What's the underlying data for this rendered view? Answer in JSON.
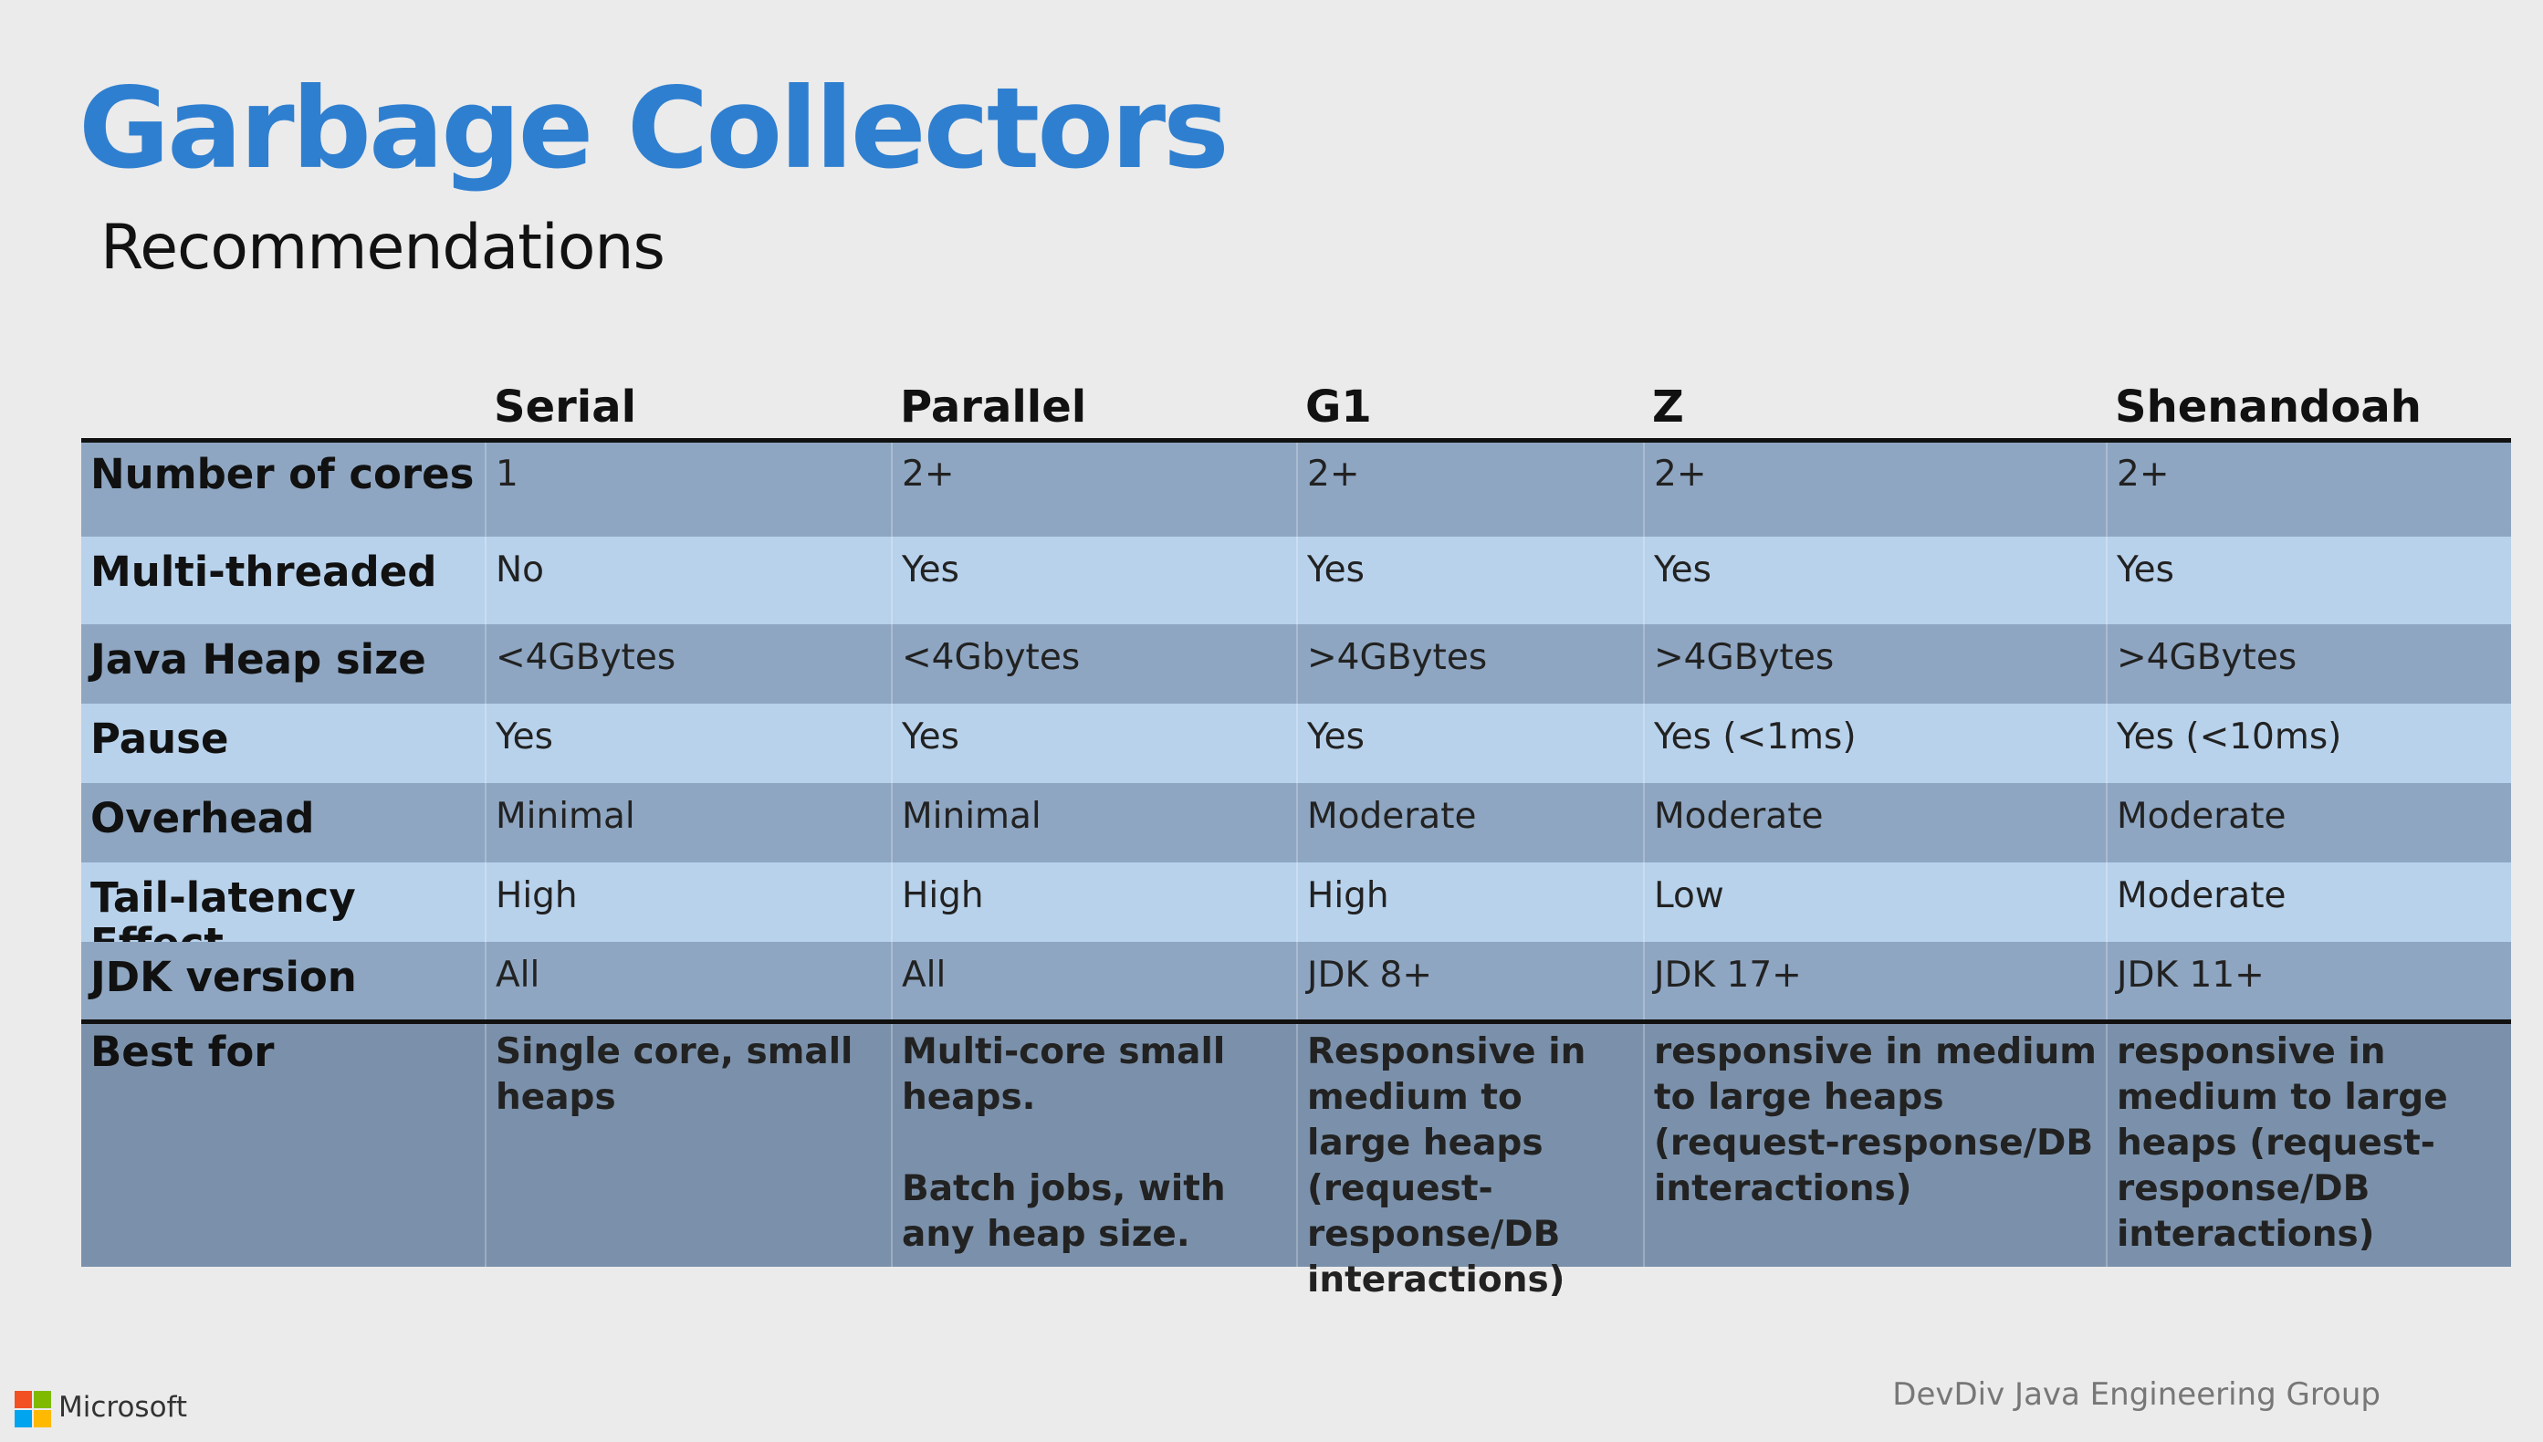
{
  "header": {
    "title": "Garbage Collectors",
    "subtitle": "Recommendations"
  },
  "table": {
    "columns": [
      "Serial",
      "Parallel",
      "G1",
      "Z",
      "Shenandoah"
    ],
    "rows": [
      {
        "label": "Number of cores",
        "cells": [
          [
            "1"
          ],
          [
            "2+"
          ],
          [
            "2+"
          ],
          [
            "2+"
          ],
          [
            "2+"
          ]
        ]
      },
      {
        "label": "Multi-threaded",
        "cells": [
          [
            "No"
          ],
          [
            "Yes"
          ],
          [
            "Yes"
          ],
          [
            "Yes"
          ],
          [
            "Yes"
          ]
        ]
      },
      {
        "label": "Java Heap size",
        "cells": [
          [
            "<4GBytes"
          ],
          [
            "<4Gbytes"
          ],
          [
            ">4GBytes"
          ],
          [
            ">4GBytes"
          ],
          [
            ">4GBytes"
          ]
        ]
      },
      {
        "label": "Pause",
        "cells": [
          [
            "Yes"
          ],
          [
            "Yes"
          ],
          [
            "Yes"
          ],
          [
            "Yes (<1ms)"
          ],
          [
            "Yes (<10ms)"
          ]
        ]
      },
      {
        "label": "Overhead",
        "cells": [
          [
            "Minimal"
          ],
          [
            "Minimal"
          ],
          [
            "Moderate"
          ],
          [
            "Moderate"
          ],
          [
            "Moderate"
          ]
        ]
      },
      {
        "label": "Tail-latency Effect",
        "cells": [
          [
            "High"
          ],
          [
            "High"
          ],
          [
            "High"
          ],
          [
            "Low"
          ],
          [
            "Moderate"
          ]
        ]
      },
      {
        "label": "JDK version",
        "cells": [
          [
            "All"
          ],
          [
            "All"
          ],
          [
            "JDK 8+"
          ],
          [
            "JDK 17+"
          ],
          [
            "JDK 11+"
          ]
        ]
      },
      {
        "label": "Best for",
        "cells": [
          [
            "Single core, small heaps"
          ],
          [
            "Multi-core small heaps.",
            "Batch jobs, with any heap size."
          ],
          [
            "Responsive in medium to large heaps (request-response/DB interactions)"
          ],
          [
            "responsive in medium to large heaps (request-response/DB interactions)"
          ],
          [
            "responsive in medium to large heaps (request-response/DB interactions)"
          ]
        ]
      }
    ]
  },
  "footer": {
    "brand": "Microsoft",
    "group": "DevDiv Java Engineering Group"
  }
}
